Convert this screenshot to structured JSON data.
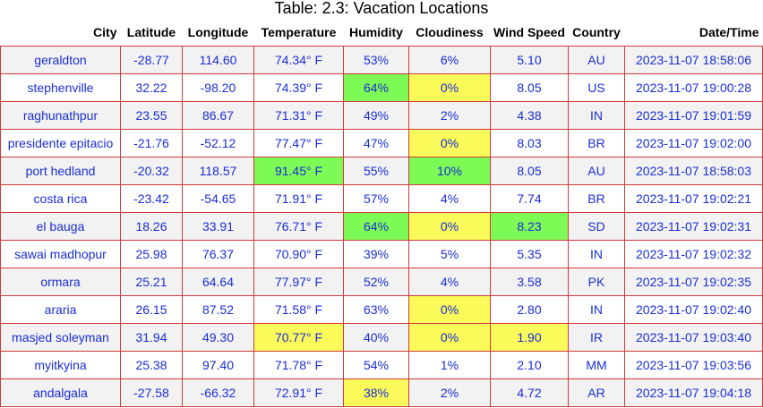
{
  "caption": "Table: 2.3: Vacation Locations",
  "colors": {
    "border": "#d23a3a",
    "text": "#1a2ed6",
    "stripe": "#f2f2f2",
    "highlight_high": "#7dfa55",
    "highlight_low": "#fafa5a"
  },
  "columns": [
    "City",
    "Latitude",
    "Longitude",
    "Temperature",
    "Humidity",
    "Cloudiness",
    "Wind Speed",
    "Country",
    "Date/Time"
  ],
  "rows": [
    {
      "cells": [
        "geraldton",
        "-28.77",
        "114.60",
        "74.34° F",
        "53%",
        "6%",
        "5.10",
        "AU",
        "2023-11-07 18:58:06"
      ],
      "highlights": {}
    },
    {
      "cells": [
        "stephenville",
        "32.22",
        "-98.20",
        "74.39° F",
        "64%",
        "0%",
        "8.05",
        "US",
        "2023-11-07 19:00:28"
      ],
      "highlights": {
        "4": "high",
        "5": "low"
      }
    },
    {
      "cells": [
        "raghunathpur",
        "23.55",
        "86.67",
        "71.31° F",
        "49%",
        "2%",
        "4.38",
        "IN",
        "2023-11-07 19:01:59"
      ],
      "highlights": {}
    },
    {
      "cells": [
        "presidente epitacio",
        "-21.76",
        "-52.12",
        "77.47° F",
        "47%",
        "0%",
        "8.03",
        "BR",
        "2023-11-07 19:02:00"
      ],
      "highlights": {
        "5": "low"
      }
    },
    {
      "cells": [
        "port hedland",
        "-20.32",
        "118.57",
        "91.45° F",
        "55%",
        "10%",
        "8.05",
        "AU",
        "2023-11-07 18:58:03"
      ],
      "highlights": {
        "3": "high",
        "5": "high"
      }
    },
    {
      "cells": [
        "costa rica",
        "-23.42",
        "-54.65",
        "71.91° F",
        "57%",
        "4%",
        "7.74",
        "BR",
        "2023-11-07 19:02:21"
      ],
      "highlights": {}
    },
    {
      "cells": [
        "el bauga",
        "18.26",
        "33.91",
        "76.71° F",
        "64%",
        "0%",
        "8.23",
        "SD",
        "2023-11-07 19:02:31"
      ],
      "highlights": {
        "4": "high",
        "5": "low",
        "6": "high"
      }
    },
    {
      "cells": [
        "sawai madhopur",
        "25.98",
        "76.37",
        "70.90° F",
        "39%",
        "5%",
        "5.35",
        "IN",
        "2023-11-07 19:02:32"
      ],
      "highlights": {}
    },
    {
      "cells": [
        "ormara",
        "25.21",
        "64.64",
        "77.97° F",
        "52%",
        "4%",
        "3.58",
        "PK",
        "2023-11-07 19:02:35"
      ],
      "highlights": {}
    },
    {
      "cells": [
        "araria",
        "26.15",
        "87.52",
        "71.58° F",
        "63%",
        "0%",
        "2.80",
        "IN",
        "2023-11-07 19:02:40"
      ],
      "highlights": {
        "5": "low"
      }
    },
    {
      "cells": [
        "masjed soleyman",
        "31.94",
        "49.30",
        "70.77° F",
        "40%",
        "0%",
        "1.90",
        "IR",
        "2023-11-07 19:03:40"
      ],
      "highlights": {
        "3": "low",
        "5": "low",
        "6": "low"
      }
    },
    {
      "cells": [
        "myitkyina",
        "25.38",
        "97.40",
        "71.78° F",
        "54%",
        "1%",
        "2.10",
        "MM",
        "2023-11-07 19:03:56"
      ],
      "highlights": {}
    },
    {
      "cells": [
        "andalgala",
        "-27.58",
        "-66.32",
        "72.91° F",
        "38%",
        "2%",
        "4.72",
        "AR",
        "2023-11-07 19:04:18"
      ],
      "highlights": {
        "4": "low"
      }
    }
  ]
}
